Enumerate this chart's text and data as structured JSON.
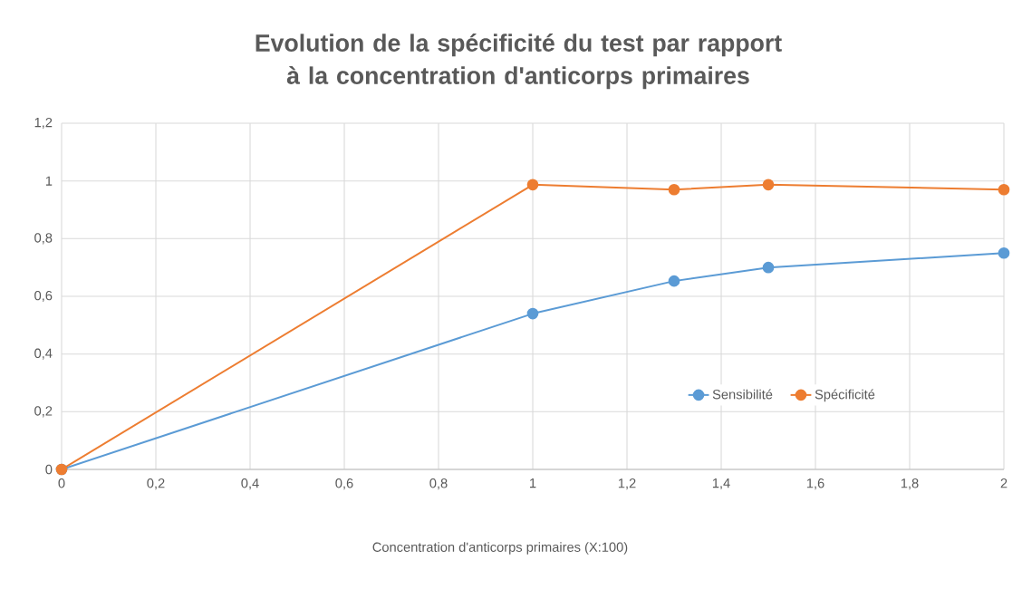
{
  "chart_data": {
    "type": "line",
    "title": "Evolution de la spécificité du test par rapport à la concentration d'anticorps primaires",
    "xlabel": "Concentration d'anticorps primaires (X:100)",
    "x": [
      0,
      1,
      1.3,
      1.5,
      2
    ],
    "series": [
      {
        "name": "Sensibilité",
        "color": "#5b9bd5",
        "values": [
          0,
          0.54,
          0.653,
          0.7,
          0.75
        ]
      },
      {
        "name": "Spécificité",
        "color": "#ed7d31",
        "values": [
          0,
          0.987,
          0.97,
          0.987,
          0.97
        ]
      }
    ],
    "xlim": [
      0,
      2
    ],
    "ylim": [
      0,
      1.2
    ],
    "xticks": [
      0,
      {
        "value": 0.2,
        "label": "0,2"
      },
      {
        "value": 0.4,
        "label": "0,4"
      },
      {
        "value": 0.6,
        "label": "0,6"
      },
      {
        "value": 0.8,
        "label": "0,8"
      },
      1,
      {
        "value": 1.2,
        "label": "1,2"
      },
      {
        "value": 1.4,
        "label": "1,4"
      },
      {
        "value": 1.6,
        "label": "1,6"
      },
      {
        "value": 1.8,
        "label": "1,8"
      },
      2
    ],
    "yticks": [
      0,
      {
        "value": 0.2,
        "label": "0,2"
      },
      {
        "value": 0.4,
        "label": "0,4"
      },
      {
        "value": 0.6,
        "label": "0,6"
      },
      {
        "value": 0.8,
        "label": "0,8"
      },
      1,
      {
        "value": 1.2,
        "label": "1,2"
      }
    ],
    "grid": true,
    "legend": "right",
    "marker": "circle",
    "line_style": "solid"
  }
}
